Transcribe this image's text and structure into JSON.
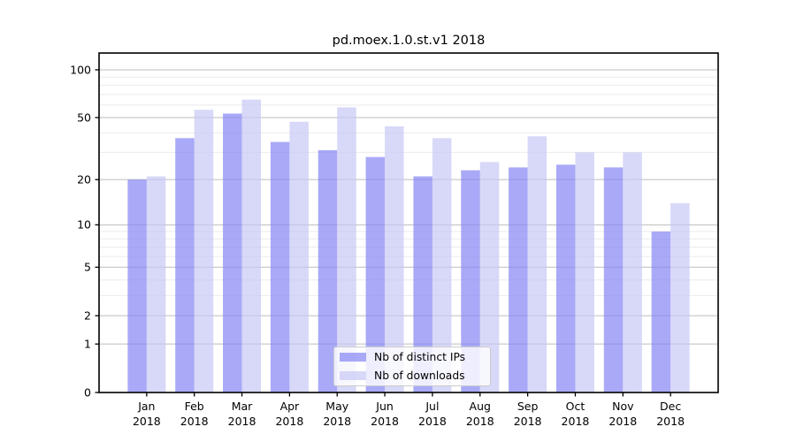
{
  "title": "pd.moex.1.0.st.v1 2018",
  "chart_data": {
    "type": "bar",
    "title": "pd.moex.1.0.st.v1 2018",
    "categories": [
      "Jan",
      "Feb",
      "Mar",
      "Apr",
      "May",
      "Jun",
      "Jul",
      "Aug",
      "Sep",
      "Oct",
      "Nov",
      "Dec"
    ],
    "year_label": "2018",
    "series": [
      {
        "name": "Nb of distinct IPs",
        "color": "rgba(133,133,245,0.7)",
        "legend_hex": "#aaaaf8",
        "values": [
          20,
          37,
          53,
          35,
          31,
          28,
          21,
          23,
          24,
          25,
          24,
          9
        ]
      },
      {
        "name": "Nb of downloads",
        "color": "rgba(200,200,245,0.7)",
        "legend_hex": "#d8d8f8",
        "values": [
          21,
          56,
          65,
          47,
          58,
          44,
          37,
          26,
          38,
          30,
          30,
          14
        ]
      }
    ],
    "yscale": "log1p",
    "ylim": [
      0,
      127
    ],
    "yticks": [
      100,
      50,
      20,
      10,
      5,
      2,
      1,
      0
    ],
    "minor_gridlines": [
      3,
      4,
      6,
      7,
      8,
      9,
      30,
      40,
      60,
      70,
      80,
      90
    ],
    "grid": true,
    "legend_position": "lower-center",
    "colors": {
      "bar_dark_on_white": "#aaaaf8",
      "bar_light_on_white": "#d8d8f8",
      "major_grid": "#bdbdbd",
      "minor_grid": "#ebebeb",
      "axis": "#000000"
    }
  }
}
